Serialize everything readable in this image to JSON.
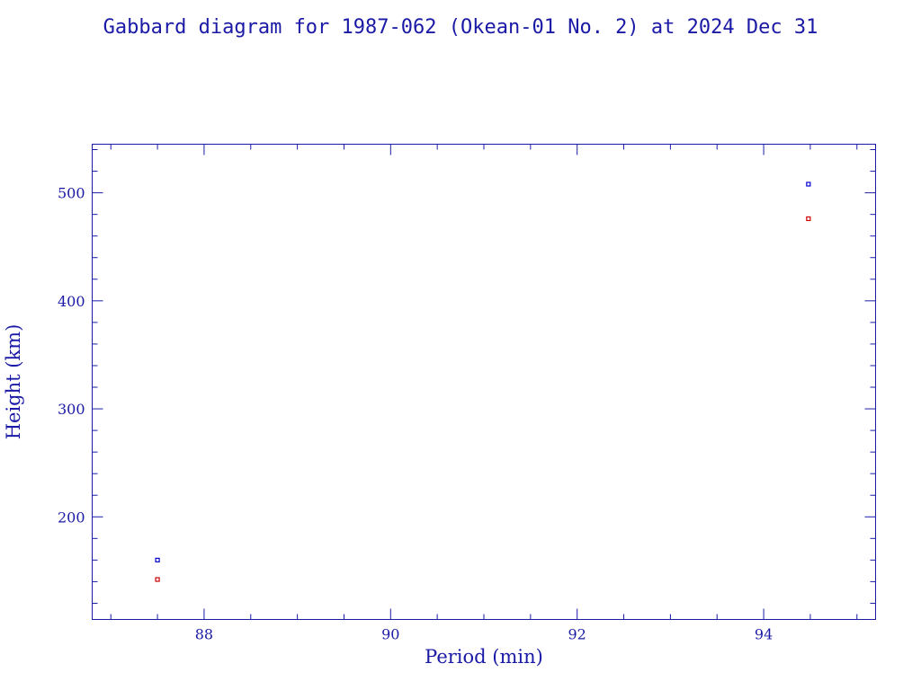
{
  "chart_data": {
    "type": "scatter",
    "title": "Gabbard diagram for 1987-062 (Okean-01 No. 2) at 2024 Dec 31",
    "xlabel": "Period (min)",
    "ylabel": "Height (km)",
    "xlim": [
      86.8,
      95.2
    ],
    "ylim": [
      105,
      545
    ],
    "x_ticks": [
      88,
      90,
      92,
      94
    ],
    "x_tick_labels": [
      "88",
      "90",
      "92",
      "94"
    ],
    "x_minor_step": 0.5,
    "y_ticks": [
      200,
      300,
      400,
      500
    ],
    "y_tick_labels": [
      "200",
      "300",
      "400",
      "500"
    ],
    "y_minor_step": 20,
    "grid": false,
    "series": [
      {
        "color": "#0000cc",
        "marker": "square-outline",
        "points": [
          {
            "x": 87.5,
            "y": 160
          },
          {
            "x": 94.48,
            "y": 508
          }
        ]
      },
      {
        "color": "#cc0000",
        "marker": "square-outline",
        "points": [
          {
            "x": 87.5,
            "y": 142
          },
          {
            "x": 94.48,
            "y": 476
          }
        ]
      }
    ]
  },
  "colors": {
    "axis": "#1a1aa6",
    "background": "#ffffff"
  }
}
